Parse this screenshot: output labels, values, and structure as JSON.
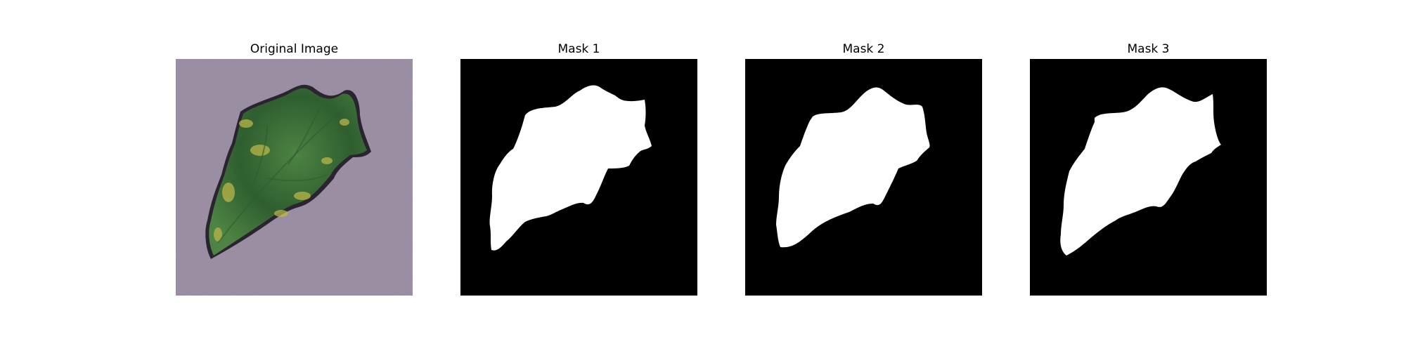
{
  "figure": {
    "panels": [
      {
        "title": "Original Image",
        "content": "leaf-photo"
      },
      {
        "title": "Mask 1",
        "content": "binary-mask"
      },
      {
        "title": "Mask 2",
        "content": "binary-mask"
      },
      {
        "title": "Mask 3",
        "content": "binary-mask"
      }
    ]
  },
  "colors": {
    "background": "#ffffff",
    "mask_background": "#000000",
    "mask_foreground": "#ffffff",
    "photo_background": "#9f93a8",
    "leaf_dark": "#2f5e2f",
    "leaf_mid": "#4d8343",
    "leaf_yellow": "#b8b54a",
    "leaf_shadow": "#2a2330"
  }
}
